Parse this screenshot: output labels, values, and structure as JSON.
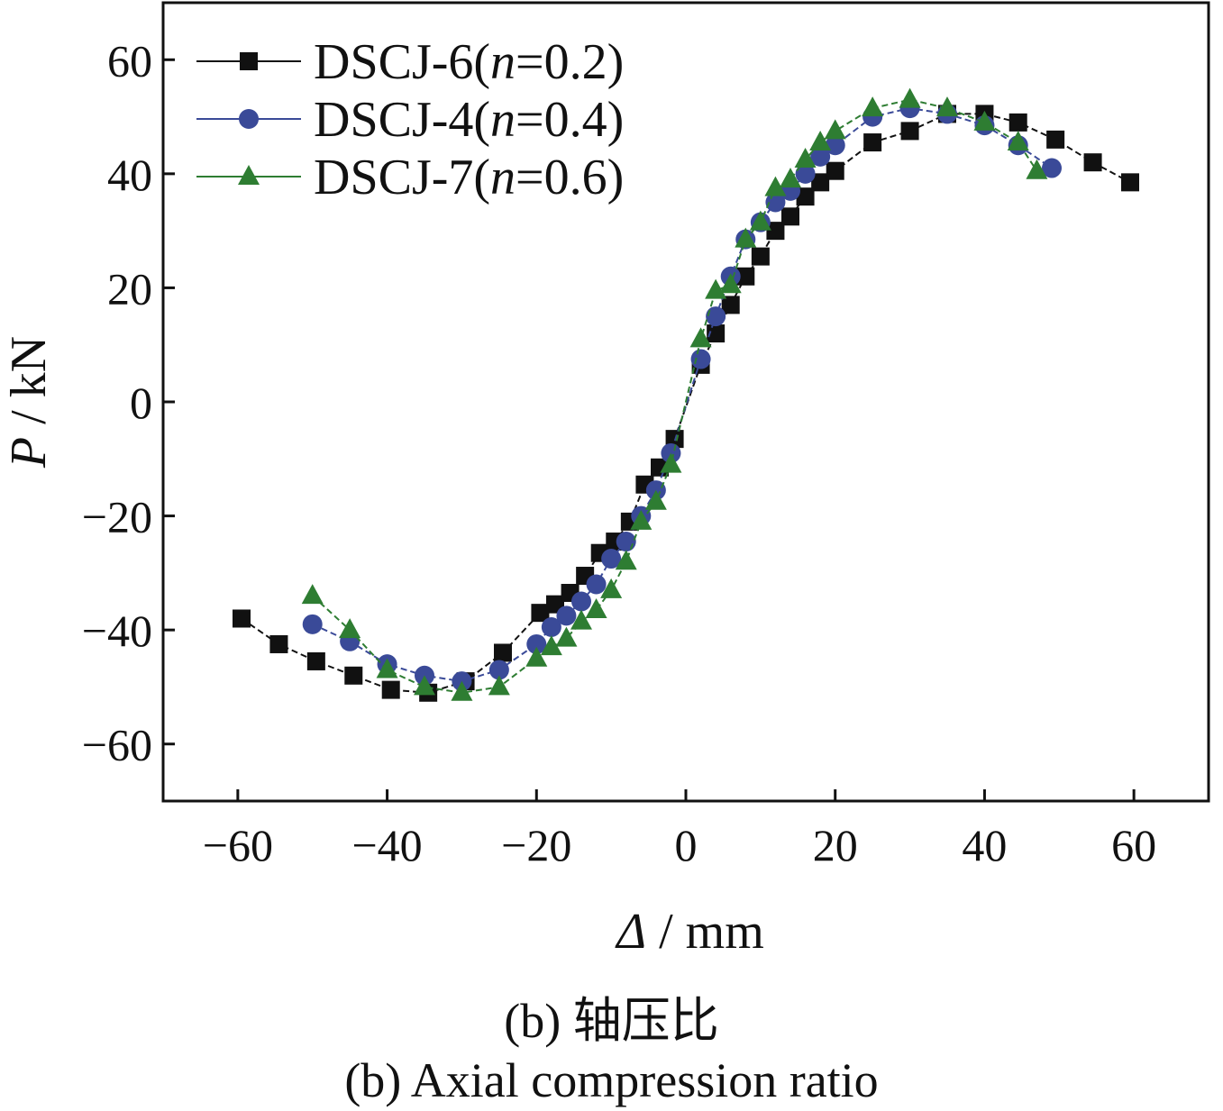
{
  "chart_data": {
    "type": "line",
    "xlabel_symbol": "Δ",
    "xlabel_unit": "mm",
    "ylabel_symbol": "P",
    "ylabel_unit": "kN",
    "xlim": [
      -70,
      70
    ],
    "ylim": [
      -70,
      70
    ],
    "xticks": [
      -60,
      -40,
      -20,
      0,
      20,
      40,
      60
    ],
    "yticks": [
      -60,
      -40,
      -20,
      0,
      20,
      40,
      60
    ],
    "legend_position": "top-left",
    "series": [
      {
        "name": "DSCJ-6(n=0.2)",
        "label_prefix": "DSCJ-6(",
        "label_italic": "n",
        "label_suffix": "=0.2)",
        "color": "#111111",
        "marker": "square",
        "x": [
          -59.5,
          -54.5,
          -49.5,
          -44.5,
          -39.5,
          -34.5,
          -29.5,
          -24.5,
          -19.5,
          -17.5,
          -15.5,
          -13.5,
          -11.5,
          -9.5,
          -7.5,
          -5.5,
          -3.5,
          -1.5,
          2,
          4,
          6,
          8,
          10,
          12,
          14,
          16,
          18,
          20,
          25,
          30,
          35,
          40,
          44.5,
          49.5,
          54.5,
          59.5
        ],
        "y": [
          -38,
          -42.5,
          -45.5,
          -48,
          -50.5,
          -51,
          -49,
          -44,
          -37,
          -35.5,
          -33.5,
          -30.5,
          -26.5,
          -24.5,
          -21,
          -14.5,
          -11.5,
          -6.5,
          6.5,
          12,
          17,
          22,
          25.5,
          30,
          32.5,
          36,
          38.5,
          40.5,
          45.5,
          47.5,
          50.5,
          50.5,
          49,
          46,
          42,
          38.5
        ]
      },
      {
        "name": "DSCJ-4(n=0.4)",
        "label_prefix": "DSCJ-4(",
        "label_italic": "n",
        "label_suffix": "=0.4)",
        "color": "#3a4a98",
        "marker": "circle",
        "x": [
          -50,
          -45,
          -40,
          -35,
          -30,
          -25,
          -20,
          -18,
          -16,
          -14,
          -12,
          -10,
          -8,
          -6,
          -4,
          -2,
          2,
          4,
          6,
          8,
          10,
          12,
          14,
          16,
          18,
          20,
          25,
          30,
          35,
          40,
          44.5,
          49
        ],
        "y": [
          -39,
          -42,
          -46,
          -48,
          -49,
          -47,
          -42.5,
          -39.5,
          -37.5,
          -35,
          -32,
          -27.5,
          -24.5,
          -20,
          -15.5,
          -9,
          7.5,
          15,
          22,
          28.5,
          31.5,
          35,
          37,
          40,
          43,
          45,
          50,
          51.5,
          50.5,
          48.5,
          45,
          41
        ]
      },
      {
        "name": "DSCJ-7(n=0.6)",
        "label_prefix": "DSCJ-7(",
        "label_italic": "n",
        "label_suffix": "=0.6)",
        "color": "#2e7d32",
        "marker": "triangle",
        "x": [
          -50,
          -45,
          -40,
          -35,
          -30,
          -25,
          -20,
          -18,
          -16,
          -14,
          -12,
          -10,
          -8,
          -6,
          -4,
          -2,
          2,
          4,
          6,
          8,
          10,
          12,
          14,
          16,
          18,
          20,
          25,
          30,
          35,
          40,
          44.5,
          47
        ],
        "y": [
          -34,
          -40,
          -47,
          -50,
          -51,
          -50,
          -45,
          -43,
          -41.5,
          -38.5,
          -36.5,
          -33,
          -28,
          -21,
          -17.5,
          -11,
          11,
          19.5,
          20.5,
          28.5,
          31.5,
          37.5,
          39,
          42.5,
          45.5,
          47.5,
          51.5,
          53,
          51.5,
          49,
          45.5,
          40.5
        ]
      }
    ]
  },
  "caption": {
    "chinese": "(b) 轴压比",
    "english": "(b) Axial compression ratio"
  }
}
